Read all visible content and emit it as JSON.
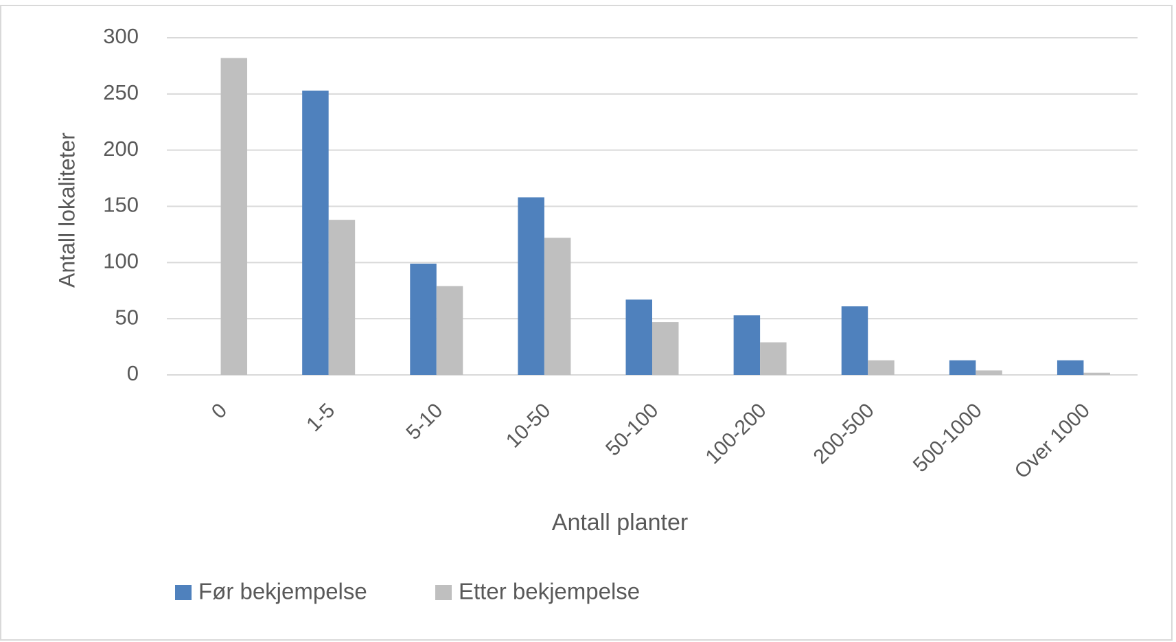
{
  "chart_data": {
    "type": "bar",
    "categories": [
      "0",
      "1-5",
      "5-10",
      "10-50",
      "50-100",
      "100-200",
      "200-500",
      "500-1000",
      "Over 1000"
    ],
    "series": [
      {
        "name": "Før bekjempelse",
        "color": "#4f81bd",
        "values": [
          0,
          253,
          99,
          158,
          67,
          53,
          61,
          13,
          13
        ]
      },
      {
        "name": "Etter bekjempelse",
        "color": "#bfbfbf",
        "values": [
          282,
          138,
          79,
          122,
          47,
          29,
          13,
          4,
          2
        ]
      }
    ],
    "xlabel": "Antall planter",
    "ylabel": "Antall lokaliteter",
    "ylim": [
      0,
      300
    ],
    "yticks": [
      0,
      50,
      100,
      150,
      200,
      250,
      300
    ],
    "grid": true,
    "legend": "bottom"
  }
}
